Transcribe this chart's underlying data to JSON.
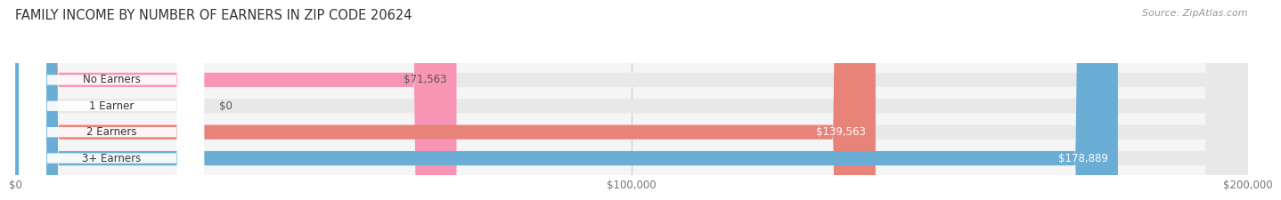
{
  "title": "FAMILY INCOME BY NUMBER OF EARNERS IN ZIP CODE 20624",
  "source": "Source: ZipAtlas.com",
  "categories": [
    "No Earners",
    "1 Earner",
    "2 Earners",
    "3+ Earners"
  ],
  "values": [
    71563,
    0,
    139563,
    178889
  ],
  "value_labels": [
    "$71,563",
    "$0",
    "$139,563",
    "$178,889"
  ],
  "bar_colors": [
    "#f895b4",
    "#f5c990",
    "#e8837a",
    "#6aaed6"
  ],
  "label_colors": [
    "#555555",
    "#555555",
    "#ffffff",
    "#ffffff"
  ],
  "bar_bg_color": "#e8e8e8",
  "xlim": [
    0,
    200000
  ],
  "xtick_labels": [
    "$0",
    "$100,000",
    "$200,000"
  ],
  "background_color": "#ffffff",
  "bar_height": 0.55,
  "title_fontsize": 10.5,
  "source_fontsize": 8,
  "label_fontsize": 8.5,
  "tick_fontsize": 8.5
}
